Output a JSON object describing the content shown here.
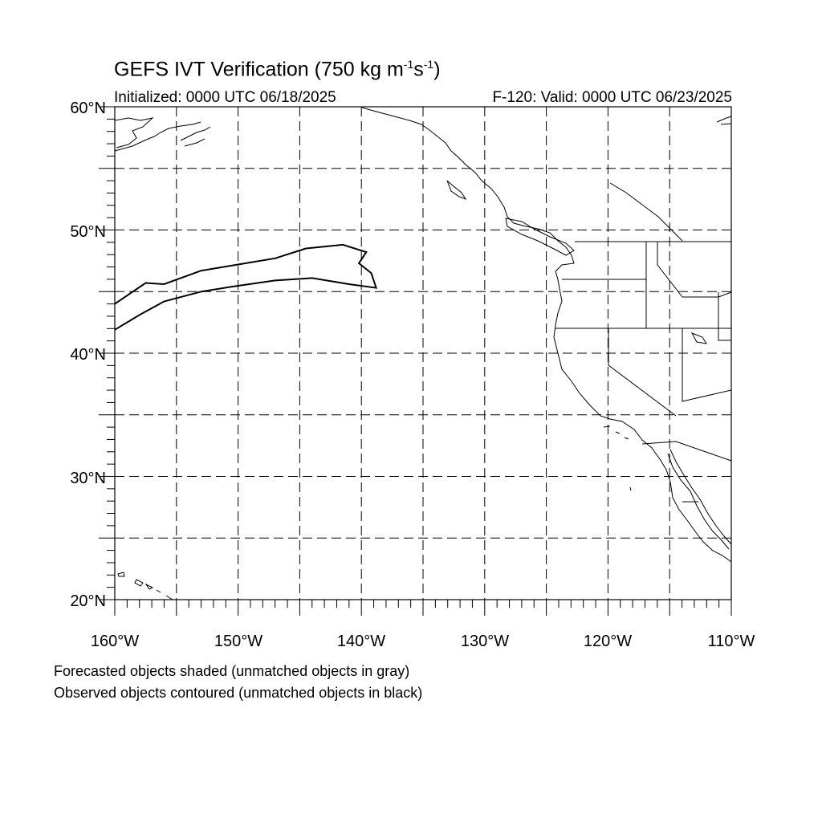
{
  "title": {
    "main": "GEFS IVT Verification (750 kg m",
    "sup1": "-1",
    "mid": "s",
    "sup2": "-1",
    "close": ")"
  },
  "initialized": "Initialized: 0000 UTC 06/18/2025",
  "valid": "F-120: Valid: 0000 UTC 06/23/2025",
  "lat_labels": [
    "60°N",
    "50°N",
    "40°N",
    "30°N",
    "20°N"
  ],
  "lon_labels": [
    "160°W",
    "150°W",
    "140°W",
    "130°W",
    "120°W",
    "110°W"
  ],
  "map_extent": {
    "lon": [
      -160,
      -110
    ],
    "lat": [
      20,
      60
    ],
    "grid_spacing_deg": 5
  },
  "observed_object": {
    "style": "black contour (unmatched observed)",
    "outline_lonlat": [
      [
        -160,
        44.0
      ],
      [
        -157.5,
        45.7
      ],
      [
        -156,
        45.6
      ],
      [
        -153,
        46.7
      ],
      [
        -150,
        47.2
      ],
      [
        -147,
        47.7
      ],
      [
        -144.5,
        48.5
      ],
      [
        -141.5,
        48.8
      ],
      [
        -139.6,
        48.2
      ],
      [
        -140.2,
        47.3
      ],
      [
        -139.2,
        46.5
      ],
      [
        -138.8,
        45.3
      ],
      [
        -141,
        45.6
      ],
      [
        -144,
        46.1
      ],
      [
        -147,
        45.9
      ],
      [
        -150.5,
        45.4
      ],
      [
        -153,
        45.0
      ],
      [
        -156,
        44.2
      ],
      [
        -158,
        43.1
      ],
      [
        -160,
        41.9
      ]
    ]
  },
  "legend_notes": [
    "Forecasted objects shaded (unmatched objects in gray)",
    "Observed objects contoured (unmatched objects in black)"
  ]
}
